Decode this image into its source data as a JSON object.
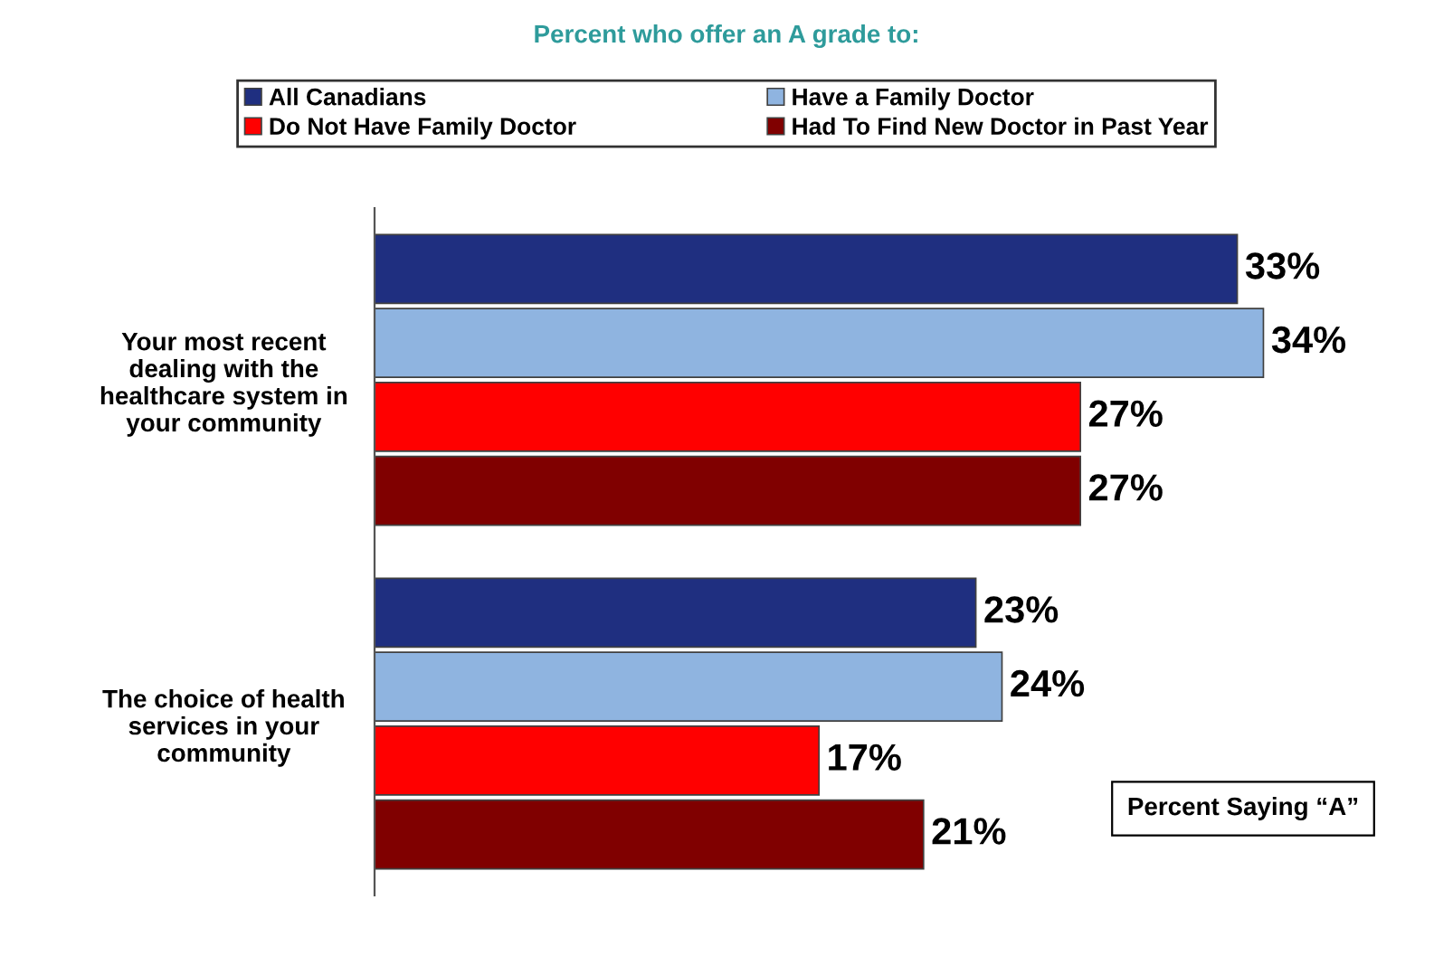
{
  "chart_data": {
    "type": "bar",
    "orientation": "horizontal",
    "title": "Percent who offer an A grade to:",
    "categories": [
      "Your most recent\ndealing with the\nhealthcare system in\nyour community",
      "The choice of health\nservices in your\ncommunity"
    ],
    "series": [
      {
        "name": "All Canadians",
        "color": "#1f2f80",
        "values": [
          33,
          23
        ],
        "value_labels": [
          "33%",
          "23%"
        ]
      },
      {
        "name": "Have a Family Doctor",
        "color": "#8fb4e0",
        "values": [
          34,
          24
        ],
        "value_labels": [
          "34%",
          "24%"
        ]
      },
      {
        "name": "Do Not Have Family Doctor",
        "color": "#ff0000",
        "values": [
          27,
          17
        ],
        "value_labels": [
          "27%",
          "17%"
        ]
      },
      {
        "name": "Had To Find New Doctor in Past Year",
        "color": "#800000",
        "values": [
          27,
          21
        ],
        "value_labels": [
          "27%",
          "21%"
        ]
      }
    ],
    "annotations": [
      "Percent Saying “A”"
    ],
    "legend": "top",
    "grid": false,
    "tick_labels": "y"
  }
}
